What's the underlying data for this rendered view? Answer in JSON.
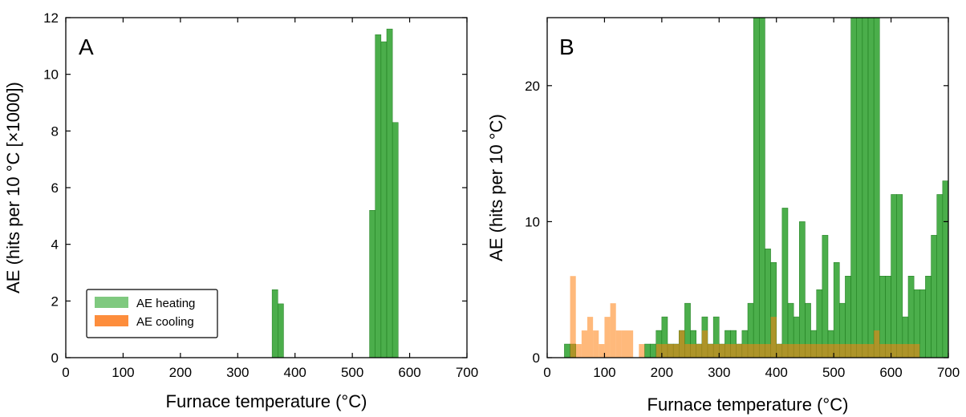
{
  "chart_data": [
    {
      "type": "bar",
      "panel_label": "A",
      "xlabel": "Furnace temperature (°C)",
      "ylabel": "AE (hits per 10 °C [×1000])",
      "xlim": [
        0,
        700
      ],
      "ylim": [
        0,
        12
      ],
      "xticks": [
        0,
        100,
        200,
        300,
        400,
        500,
        600,
        700
      ],
      "yticks": [
        0,
        2,
        4,
        6,
        8,
        10,
        12
      ],
      "bin_width": 10,
      "legend_position": "lower-left",
      "series": [
        {
          "name": "AE heating",
          "color": "#2ca02c",
          "legend_color": "#7fc97f",
          "bins": [
            [
              365,
              2.4
            ],
            [
              375,
              1.9
            ],
            [
              535,
              5.2
            ],
            [
              545,
              11.4
            ],
            [
              555,
              11.15
            ],
            [
              565,
              11.6
            ],
            [
              575,
              8.3
            ]
          ]
        },
        {
          "name": "AE cooling",
          "color": "#ff7f0e",
          "legend_color": "#fd8d3c",
          "bins": []
        }
      ]
    },
    {
      "type": "bar",
      "panel_label": "B",
      "xlabel": "Furnace temperature (°C)",
      "ylabel": "AE (hits per 10 °C)",
      "xlim": [
        0,
        700
      ],
      "ylim": [
        0,
        25
      ],
      "xticks": [
        0,
        100,
        200,
        300,
        400,
        500,
        600,
        700
      ],
      "yticks": [
        0,
        10,
        20
      ],
      "bin_width": 10,
      "series": [
        {
          "name": "AE heating",
          "color": "#2ca02c",
          "bins": [
            [
              35,
              1
            ],
            [
              45,
              1
            ],
            [
              175,
              1
            ],
            [
              185,
              1
            ],
            [
              195,
              2
            ],
            [
              205,
              3
            ],
            [
              215,
              1
            ],
            [
              225,
              1
            ],
            [
              235,
              2
            ],
            [
              245,
              4
            ],
            [
              255,
              2
            ],
            [
              265,
              1
            ],
            [
              275,
              3
            ],
            [
              285,
              1
            ],
            [
              295,
              3
            ],
            [
              305,
              1
            ],
            [
              315,
              2
            ],
            [
              325,
              2
            ],
            [
              335,
              1
            ],
            [
              345,
              2
            ],
            [
              355,
              4
            ],
            [
              365,
              25
            ],
            [
              375,
              25
            ],
            [
              385,
              8
            ],
            [
              395,
              7
            ],
            [
              405,
              1
            ],
            [
              415,
              11
            ],
            [
              425,
              4
            ],
            [
              435,
              3
            ],
            [
              445,
              10
            ],
            [
              455,
              4
            ],
            [
              465,
              2
            ],
            [
              475,
              5
            ],
            [
              485,
              9
            ],
            [
              495,
              2
            ],
            [
              505,
              7
            ],
            [
              515,
              4
            ],
            [
              525,
              6
            ],
            [
              535,
              25
            ],
            [
              545,
              25
            ],
            [
              555,
              25
            ],
            [
              565,
              25
            ],
            [
              575,
              25
            ],
            [
              585,
              6
            ],
            [
              595,
              6
            ],
            [
              605,
              12
            ],
            [
              615,
              12
            ],
            [
              625,
              3
            ],
            [
              635,
              6
            ],
            [
              645,
              5
            ],
            [
              655,
              5
            ],
            [
              665,
              6
            ],
            [
              675,
              9
            ],
            [
              685,
              12
            ],
            [
              695,
              13
            ]
          ]
        },
        {
          "name": "AE cooling",
          "color": "#ff7f0e",
          "bins": [
            [
              45,
              6
            ],
            [
              55,
              1
            ],
            [
              65,
              2
            ],
            [
              75,
              3
            ],
            [
              85,
              2
            ],
            [
              95,
              1
            ],
            [
              105,
              3
            ],
            [
              115,
              4
            ],
            [
              125,
              2
            ],
            [
              135,
              2
            ],
            [
              145,
              2
            ],
            [
              165,
              1
            ],
            [
              195,
              1
            ],
            [
              205,
              1
            ],
            [
              215,
              1
            ],
            [
              225,
              1
            ],
            [
              235,
              2
            ],
            [
              245,
              1
            ],
            [
              255,
              1
            ],
            [
              265,
              1
            ],
            [
              275,
              2
            ],
            [
              285,
              1
            ],
            [
              295,
              1
            ],
            [
              305,
              1
            ],
            [
              315,
              1
            ],
            [
              325,
              1
            ],
            [
              335,
              1
            ],
            [
              345,
              1
            ],
            [
              355,
              1
            ],
            [
              365,
              1
            ],
            [
              375,
              1
            ],
            [
              385,
              1
            ],
            [
              395,
              3
            ],
            [
              405,
              1
            ],
            [
              415,
              1
            ],
            [
              425,
              1
            ],
            [
              435,
              1
            ],
            [
              445,
              1
            ],
            [
              455,
              1
            ],
            [
              465,
              1
            ],
            [
              475,
              1
            ],
            [
              485,
              1
            ],
            [
              495,
              1
            ],
            [
              505,
              1
            ],
            [
              515,
              1
            ],
            [
              525,
              1
            ],
            [
              535,
              1
            ],
            [
              545,
              1
            ],
            [
              555,
              1
            ],
            [
              565,
              1
            ],
            [
              575,
              2
            ],
            [
              585,
              1
            ],
            [
              595,
              1
            ],
            [
              605,
              1
            ],
            [
              615,
              1
            ],
            [
              625,
              1
            ],
            [
              635,
              1
            ],
            [
              645,
              1
            ]
          ]
        }
      ]
    }
  ]
}
